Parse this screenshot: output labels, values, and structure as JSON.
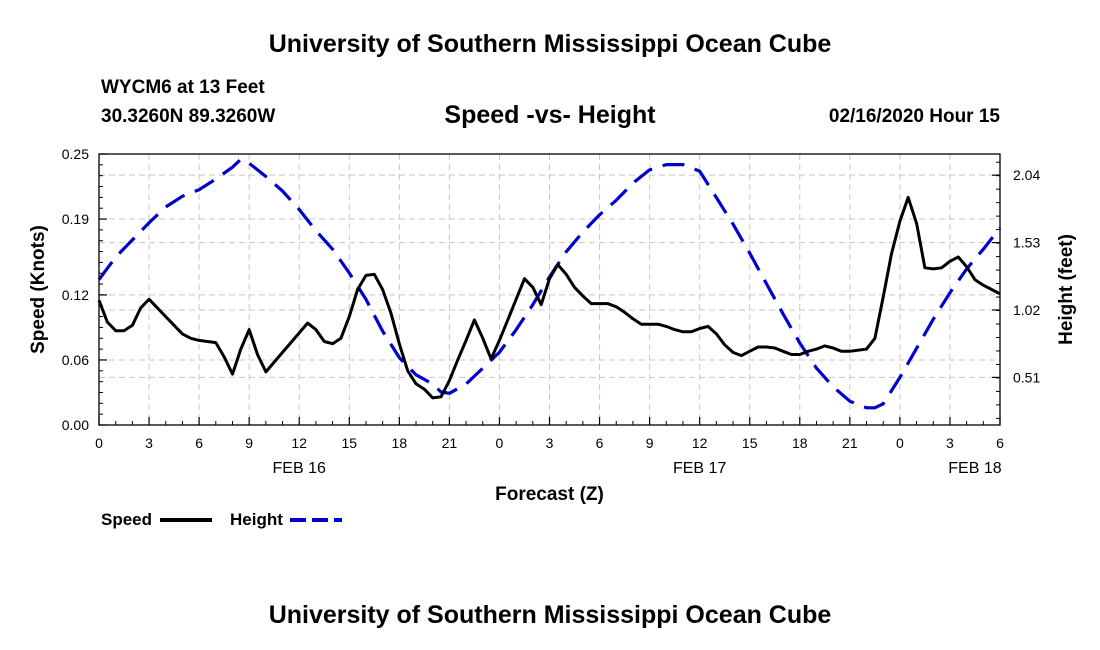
{
  "page": {
    "title_top": "University of Southern Mississippi Ocean Cube",
    "title_bottom": "University of Southern Mississippi Ocean Cube",
    "station": "WYCM6 at 13 Feet",
    "coords": "30.3260N 89.3260W",
    "datetime": "02/16/2020 Hour 15"
  },
  "chart_data": {
    "type": "line",
    "title": "Speed -vs- Height",
    "xlabel": "Forecast (Z)",
    "ylabel": "Speed (Knots)",
    "y2label": "Height (feet)",
    "x_range": [
      0,
      54
    ],
    "ylim": [
      0,
      0.25
    ],
    "y2lim": [
      0.15,
      2.2
    ],
    "grid": true,
    "x_ticks": [
      {
        "x": 0,
        "label": "0"
      },
      {
        "x": 3,
        "label": "3"
      },
      {
        "x": 6,
        "label": "6"
      },
      {
        "x": 9,
        "label": "9"
      },
      {
        "x": 12,
        "label": "12"
      },
      {
        "x": 15,
        "label": "15"
      },
      {
        "x": 18,
        "label": "18"
      },
      {
        "x": 21,
        "label": "21"
      },
      {
        "x": 24,
        "label": "0"
      },
      {
        "x": 27,
        "label": "3"
      },
      {
        "x": 30,
        "label": "6"
      },
      {
        "x": 33,
        "label": "9"
      },
      {
        "x": 36,
        "label": "12"
      },
      {
        "x": 39,
        "label": "15"
      },
      {
        "x": 42,
        "label": "18"
      },
      {
        "x": 45,
        "label": "21"
      },
      {
        "x": 48,
        "label": "0"
      },
      {
        "x": 51,
        "label": "3"
      },
      {
        "x": 54,
        "label": "6"
      }
    ],
    "day_labels": [
      {
        "x": 12,
        "label": "FEB 16"
      },
      {
        "x": 36,
        "label": "FEB 17"
      },
      {
        "x": 52.5,
        "label": "FEB 18"
      }
    ],
    "y_ticks": [
      {
        "v": 0.0,
        "label": "0.00"
      },
      {
        "v": 0.06,
        "label": "0.06"
      },
      {
        "v": 0.12,
        "label": "0.12"
      },
      {
        "v": 0.19,
        "label": "0.19"
      },
      {
        "v": 0.25,
        "label": "0.25"
      }
    ],
    "y2_ticks": [
      {
        "v": 0.51,
        "label": "0.51"
      },
      {
        "v": 1.02,
        "label": "1.02"
      },
      {
        "v": 1.53,
        "label": "1.53"
      },
      {
        "v": 2.04,
        "label": "2.04"
      }
    ],
    "series": [
      {
        "name": "Speed",
        "axis": "left",
        "color": "#000000",
        "dash": "solid",
        "x": [
          0,
          0.5,
          1,
          1.5,
          2,
          2.5,
          3,
          3.5,
          4,
          4.5,
          5,
          5.5,
          6,
          6.5,
          7,
          7.5,
          8,
          8.5,
          9,
          9.5,
          10,
          10.5,
          11,
          11.5,
          12,
          12.5,
          13,
          13.5,
          14,
          14.5,
          15,
          15.5,
          16,
          16.5,
          17,
          17.5,
          18,
          18.5,
          19,
          19.5,
          20,
          20.5,
          21,
          21.5,
          22,
          22.5,
          23,
          23.5,
          24,
          24.5,
          25,
          25.5,
          26,
          26.5,
          27,
          27.5,
          28,
          28.5,
          29,
          29.5,
          30,
          30.5,
          31,
          31.5,
          32,
          32.5,
          33,
          33.5,
          34,
          34.5,
          35,
          35.5,
          36,
          36.5,
          37,
          37.5,
          38,
          38.5,
          39,
          39.5,
          40,
          40.5,
          41,
          41.5,
          42,
          42.5,
          43,
          43.5,
          44,
          44.5,
          45,
          45.5,
          46,
          46.5,
          47,
          47.5,
          48,
          48.5,
          49,
          49.5,
          50,
          50.5,
          51,
          51.5,
          52,
          52.5,
          53,
          53.5,
          54
        ],
        "y": [
          0.115,
          0.095,
          0.087,
          0.087,
          0.092,
          0.108,
          0.116,
          0.108,
          0.1,
          0.092,
          0.084,
          0.08,
          0.078,
          0.077,
          0.076,
          0.063,
          0.047,
          0.07,
          0.088,
          0.065,
          0.049,
          0.058,
          0.067,
          0.076,
          0.085,
          0.094,
          0.088,
          0.077,
          0.075,
          0.08,
          0.1,
          0.125,
          0.138,
          0.139,
          0.125,
          0.103,
          0.075,
          0.05,
          0.038,
          0.033,
          0.025,
          0.026,
          0.041,
          0.06,
          0.078,
          0.097,
          0.08,
          0.061,
          0.078,
          0.097,
          0.116,
          0.135,
          0.127,
          0.111,
          0.135,
          0.148,
          0.139,
          0.127,
          0.119,
          0.112,
          0.112,
          0.112,
          0.109,
          0.104,
          0.098,
          0.093,
          0.093,
          0.093,
          0.091,
          0.088,
          0.086,
          0.086,
          0.089,
          0.091,
          0.084,
          0.074,
          0.067,
          0.064,
          0.068,
          0.072,
          0.072,
          0.071,
          0.068,
          0.065,
          0.065,
          0.068,
          0.07,
          0.073,
          0.071,
          0.068,
          0.068,
          0.069,
          0.07,
          0.08,
          0.118,
          0.158,
          0.188,
          0.21,
          0.186,
          0.145,
          0.144,
          0.145,
          0.151,
          0.155,
          0.146,
          0.134,
          0.129,
          0.125,
          0.121
        ]
      },
      {
        "name": "Height",
        "axis": "right",
        "color": "#0000cc",
        "dash": "dashed",
        "x": [
          0,
          1,
          2,
          3,
          4,
          5,
          6,
          7,
          8,
          8.5,
          9,
          10,
          11,
          12,
          13,
          14,
          15,
          16,
          17,
          18,
          19,
          20,
          20.5,
          21,
          22,
          23,
          24,
          25,
          26,
          27,
          28,
          29,
          30,
          31,
          32,
          33,
          34,
          35,
          36,
          37,
          38,
          39,
          40,
          41,
          42,
          43,
          44,
          45,
          46,
          46.5,
          47,
          48,
          49,
          50,
          51,
          52,
          53,
          54
        ],
        "y": [
          1.25,
          1.42,
          1.55,
          1.68,
          1.8,
          1.88,
          1.93,
          2.01,
          2.1,
          2.16,
          2.13,
          2.03,
          1.92,
          1.78,
          1.62,
          1.48,
          1.3,
          1.1,
          0.86,
          0.66,
          0.53,
          0.46,
          0.4,
          0.39,
          0.46,
          0.58,
          0.7,
          0.87,
          1.06,
          1.27,
          1.46,
          1.61,
          1.74,
          1.85,
          1.98,
          2.08,
          2.12,
          2.12,
          2.07,
          1.87,
          1.67,
          1.45,
          1.22,
          0.99,
          0.77,
          0.58,
          0.44,
          0.33,
          0.28,
          0.28,
          0.31,
          0.51,
          0.73,
          0.95,
          1.15,
          1.33,
          1.48,
          1.64
        ]
      }
    ],
    "legend": [
      {
        "label": "Speed",
        "color": "#000000",
        "dash": "solid"
      },
      {
        "label": "Height",
        "color": "#0000cc",
        "dash": "dashed"
      }
    ],
    "legend_position": "bottom-left"
  }
}
